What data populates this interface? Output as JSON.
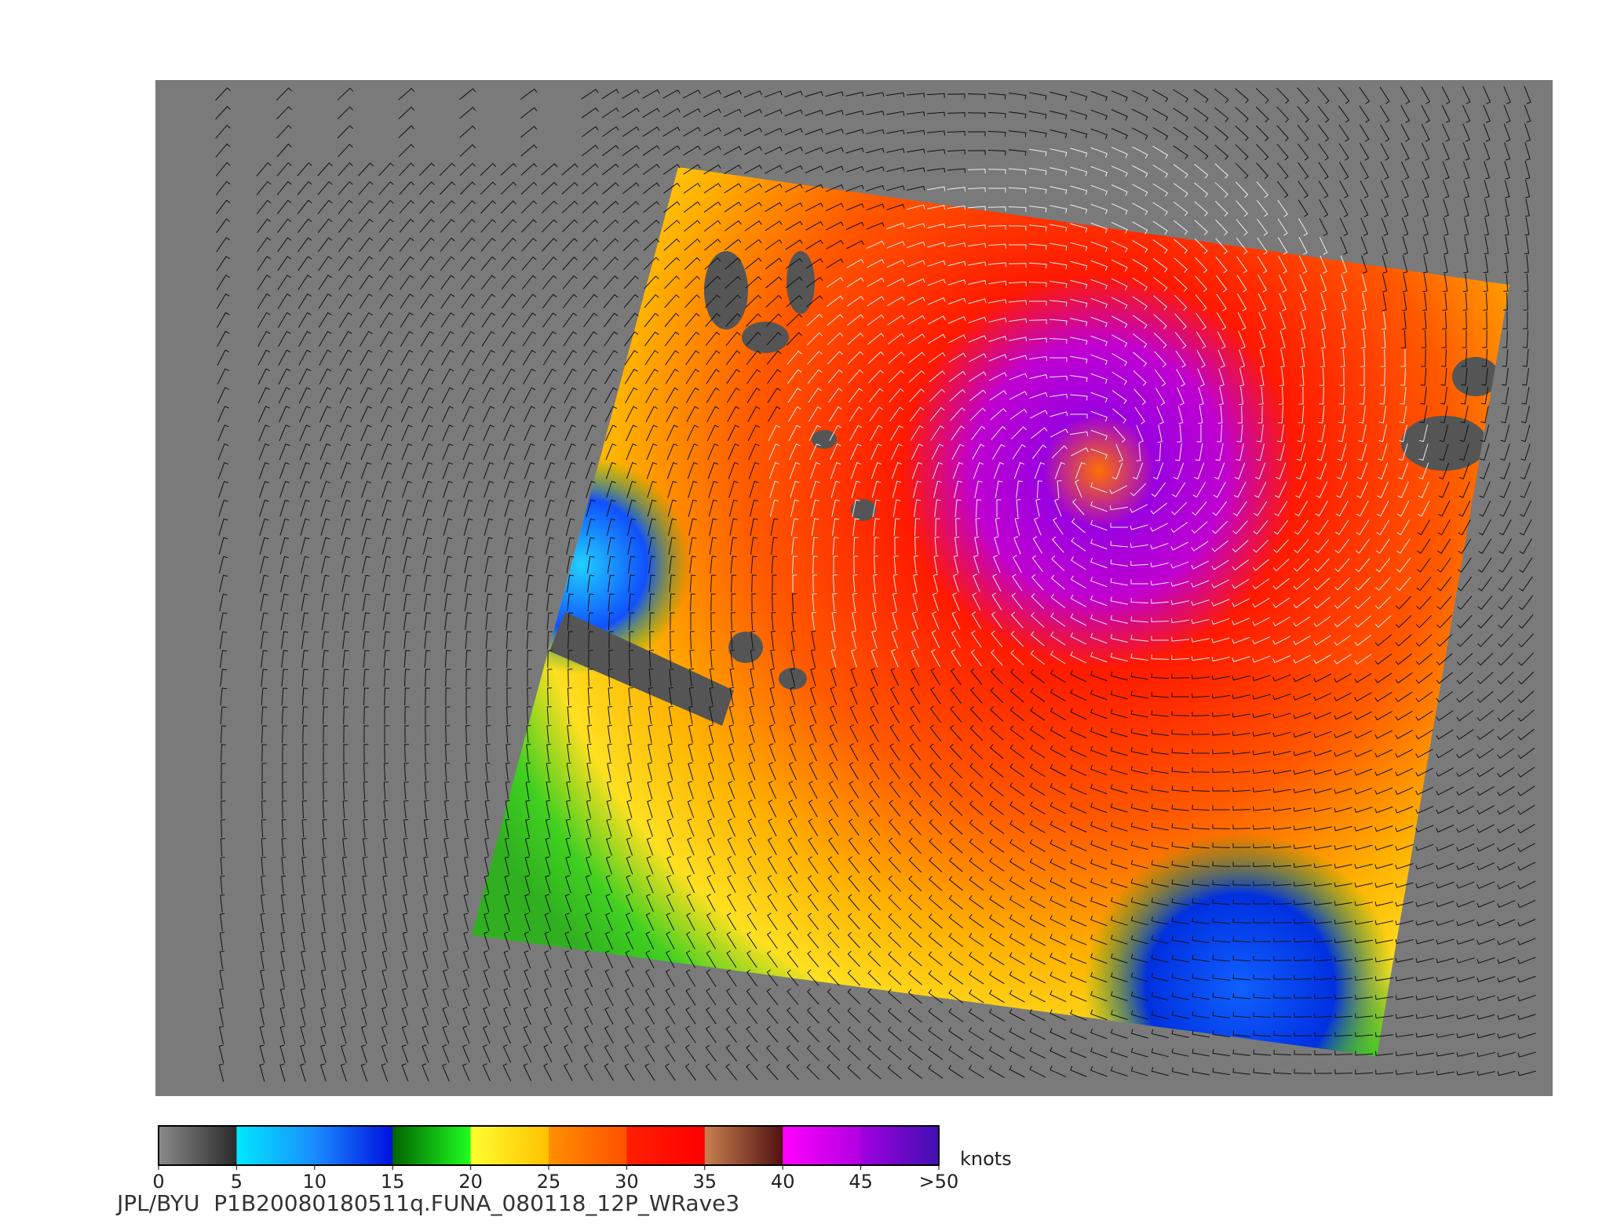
{
  "colorbar": {
    "range": [
      0,
      50
    ],
    "ticks": [
      0,
      5,
      10,
      15,
      20,
      25,
      30,
      35,
      40,
      45,
      {
        "value": 50,
        "label": ">50"
      }
    ],
    "colors": [
      [
        "#8a8a8a",
        "#2a2a2a"
      ],
      [
        "#00e8ff",
        "#1a8cff"
      ],
      [
        "#1a8cff",
        "#0010e0"
      ],
      [
        "#006400",
        "#20ff20"
      ],
      [
        "#ffff30",
        "#ffc000"
      ],
      [
        "#ff9000",
        "#ff5000"
      ],
      [
        "#ff2000",
        "#ff0000"
      ],
      [
        "#c88050",
        "#501010"
      ],
      [
        "#ff00ff",
        "#b000e0"
      ],
      [
        "#a000e0",
        "#4010b0"
      ]
    ],
    "unit": "knots"
  },
  "caption": "JPL/BYU  P1B20080180511q.FUNA_080118_12P_WRave3"
}
